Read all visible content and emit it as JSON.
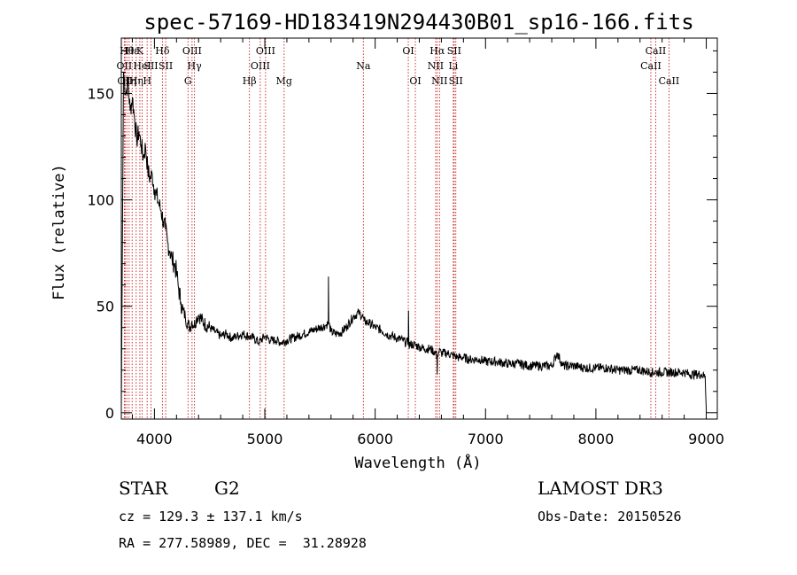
{
  "chart_data": {
    "type": "line",
    "title": "spec-57169-HD183419N294430B01_sp16-166.fits",
    "xlabel": "Wavelength (Å)",
    "ylabel": "Flux (relative)",
    "xlim": [
      3700,
      9100
    ],
    "ylim": [
      -3,
      176
    ],
    "xticks": [
      4000,
      5000,
      6000,
      7000,
      8000,
      9000
    ],
    "yticks": [
      0,
      50,
      100,
      150
    ],
    "grid": false,
    "series": [
      {
        "x": [
          3700,
          3720,
          3740,
          3760,
          3780,
          3800,
          3820,
          3840,
          3860,
          3880,
          3900,
          3920,
          3940,
          3960,
          3980,
          4000,
          4020,
          4040,
          4060,
          4080,
          4100,
          4120,
          4140,
          4160,
          4180,
          4200,
          4220,
          4240,
          4260,
          4280,
          4300,
          4320,
          4340,
          4360,
          4380,
          4400,
          4450,
          4500,
          4550,
          4600,
          4650,
          4700,
          4750,
          4800,
          4850,
          4900,
          4950,
          5000,
          5050,
          5100,
          5150,
          5200,
          5250,
          5300,
          5350,
          5400,
          5450,
          5500,
          5550,
          5575,
          5577,
          5580,
          5600,
          5650,
          5700,
          5750,
          5800,
          5850,
          5890,
          5900,
          5950,
          6000,
          6050,
          6100,
          6150,
          6200,
          6250,
          6280,
          6300,
          6302,
          6305,
          6350,
          6400,
          6450,
          6500,
          6550,
          6560,
          6562,
          6565,
          6580,
          6600,
          6650,
          6700,
          6750,
          6800,
          6850,
          6900,
          6950,
          7000,
          7100,
          7200,
          7300,
          7400,
          7500,
          7600,
          7650,
          7700,
          7800,
          7900,
          8000,
          8100,
          8200,
          8300,
          8400,
          8500,
          8550,
          8600,
          8700,
          8800,
          8850,
          8900,
          8950,
          8990,
          9000
        ],
        "y": [
          2,
          160,
          150,
          155,
          142,
          148,
          138,
          128,
          132,
          126,
          120,
          125,
          114,
          110,
          112,
          105,
          102,
          98,
          95,
          90,
          86,
          80,
          76,
          72,
          70,
          66,
          58,
          52,
          48,
          45,
          42,
          40,
          43,
          41,
          44,
          46,
          42,
          40,
          38,
          36,
          37,
          35,
          36,
          37,
          36,
          35,
          33,
          36,
          34,
          34,
          33,
          34,
          35,
          36,
          37,
          38,
          39,
          40,
          41,
          42,
          64,
          42,
          38,
          37,
          38,
          41,
          45,
          47,
          45,
          43,
          42,
          40,
          39,
          37,
          36,
          35,
          34,
          33,
          33,
          48,
          32,
          32,
          31,
          30,
          30,
          28,
          26,
          18,
          27,
          29,
          28,
          28,
          27,
          26,
          26,
          25,
          25,
          25,
          24,
          24,
          23,
          23,
          22,
          22,
          22,
          28,
          22,
          22,
          21,
          21,
          21,
          20,
          20,
          20,
          19,
          19,
          19,
          19,
          19,
          18,
          18,
          18,
          17,
          2
        ]
      }
    ],
    "lines": [
      {
        "w": 3727,
        "label": "OII",
        "row": 1
      },
      {
        "w": 3734,
        "label": "OII",
        "row": 2
      },
      {
        "w": 3750,
        "label": "Hθ",
        "row": 0
      },
      {
        "w": 3771,
        "label": "Hη",
        "row": 2
      },
      {
        "w": 3798,
        "label": "Hε",
        "row": 0
      },
      {
        "w": 3835,
        "label": "Hη",
        "row": 2
      },
      {
        "w": 3868,
        "label": "K",
        "row": 0
      },
      {
        "w": 3889,
        "label": "HeI",
        "row": 1
      },
      {
        "w": 3934,
        "label": "H",
        "row": 2
      },
      {
        "w": 3969,
        "label": "SII",
        "row": 1
      },
      {
        "w": 4072,
        "label": "Hδ",
        "row": 0
      },
      {
        "w": 4102,
        "label": "SII",
        "row": 1
      },
      {
        "w": 4304,
        "label": "G",
        "row": 2
      },
      {
        "w": 4341,
        "label": "OIII",
        "row": 0
      },
      {
        "w": 4363,
        "label": "Hγ",
        "row": 1
      },
      {
        "w": 4861,
        "label": "Hβ",
        "row": 2
      },
      {
        "w": 4959,
        "label": "OIII",
        "row": 1
      },
      {
        "w": 5007,
        "label": "OIII",
        "row": 0
      },
      {
        "w": 5175,
        "label": "Mg",
        "row": 2
      },
      {
        "w": 5893,
        "label": "Na",
        "row": 1
      },
      {
        "w": 6300,
        "label": "OI",
        "row": 0
      },
      {
        "w": 6364,
        "label": "OI",
        "row": 2
      },
      {
        "w": 6548,
        "label": "NII",
        "row": 1
      },
      {
        "w": 6563,
        "label": "Hα",
        "row": 0
      },
      {
        "w": 6583,
        "label": "NII",
        "row": 2
      },
      {
        "w": 6708,
        "label": "Li",
        "row": 1
      },
      {
        "w": 6716,
        "label": "SII",
        "row": 0
      },
      {
        "w": 6731,
        "label": "SII",
        "row": 2
      },
      {
        "w": 8498,
        "label": "CaII",
        "row": 1
      },
      {
        "w": 8542,
        "label": "CaII",
        "row": 0
      },
      {
        "w": 8662,
        "label": "CaII",
        "row": 2
      }
    ]
  },
  "info": {
    "class_label": "STAR",
    "subclass": "G2",
    "cz": "cz = 129.3 ± 137.1 km/s",
    "radec": "RA = 277.58989, DEC =  31.28928",
    "survey": "LAMOST DR3",
    "obs_date": "Obs-Date: 20150526"
  },
  "colors": {
    "line_marker": "#c00000",
    "spectrum": "#000000"
  }
}
